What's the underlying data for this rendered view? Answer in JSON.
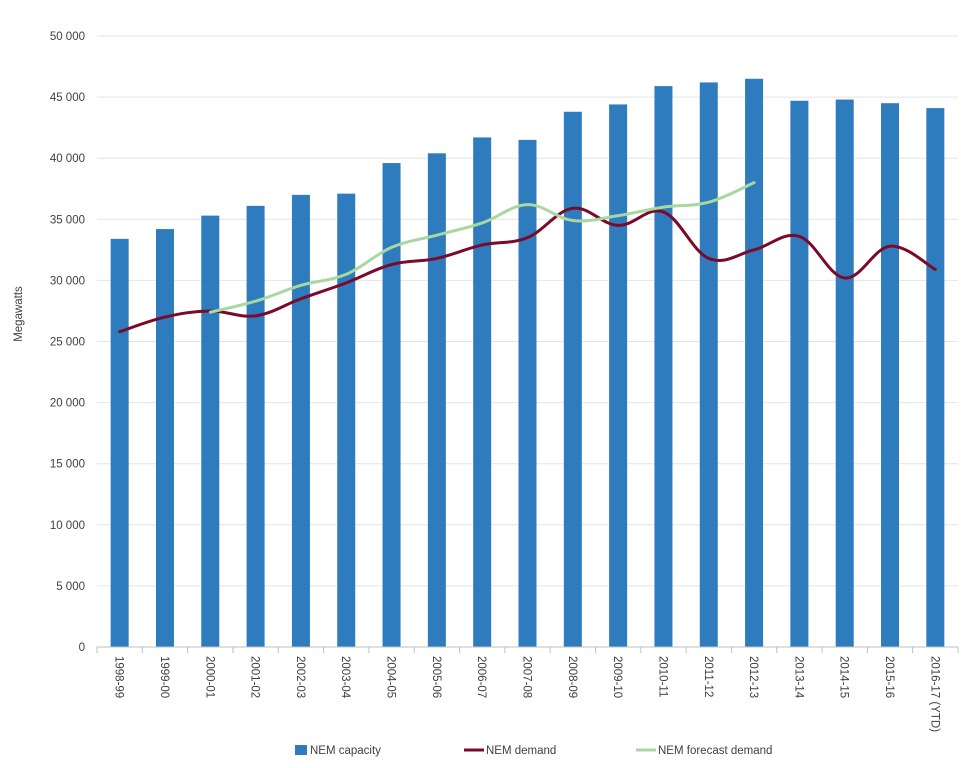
{
  "chart_data": {
    "type": "bar",
    "title": "",
    "xlabel": "",
    "ylabel": "Megawatts",
    "ylim": [
      0,
      50000
    ],
    "yticks": [
      0,
      5000,
      10000,
      15000,
      20000,
      25000,
      30000,
      35000,
      40000,
      45000,
      50000
    ],
    "ytick_labels": [
      "0",
      "5 000",
      "10 000",
      "15 000",
      "20 000",
      "25 000",
      "30 000",
      "35 000",
      "40 000",
      "45 000",
      "50 000"
    ],
    "grid": true,
    "legend_position": "bottom",
    "categories": [
      "1998-99",
      "1999-00",
      "2000-01",
      "2001-02",
      "2002-03",
      "2003-04",
      "2004-05",
      "2005-06",
      "2006-07",
      "2007-08",
      "2008-09",
      "2009-10",
      "2010-11",
      "2011-12",
      "2012-13",
      "2013-14",
      "2014-15",
      "2015-16",
      "2016-17 (YTD)"
    ],
    "series": [
      {
        "name": "NEM capacity",
        "kind": "bar",
        "color": "#2e7bbd",
        "values": [
          33400,
          34200,
          35300,
          36100,
          37000,
          37100,
          39600,
          40400,
          41700,
          41500,
          43800,
          44400,
          45900,
          46200,
          46500,
          44700,
          44800,
          44500,
          44100
        ]
      },
      {
        "name": "NEM demand",
        "kind": "line",
        "color": "#7b0a2a",
        "values": [
          25800,
          27000,
          27500,
          27100,
          28500,
          29800,
          31300,
          31800,
          32900,
          33500,
          35900,
          34500,
          35600,
          31800,
          32500,
          33600,
          30200,
          32800,
          30900
        ]
      },
      {
        "name": "NEM forecast demand",
        "kind": "line",
        "color": "#a8d8a0",
        "values": [
          null,
          null,
          27400,
          28300,
          29600,
          30500,
          32700,
          33700,
          34700,
          36200,
          34900,
          35300,
          36000,
          36400,
          38000,
          null,
          null,
          null,
          null
        ]
      }
    ]
  }
}
